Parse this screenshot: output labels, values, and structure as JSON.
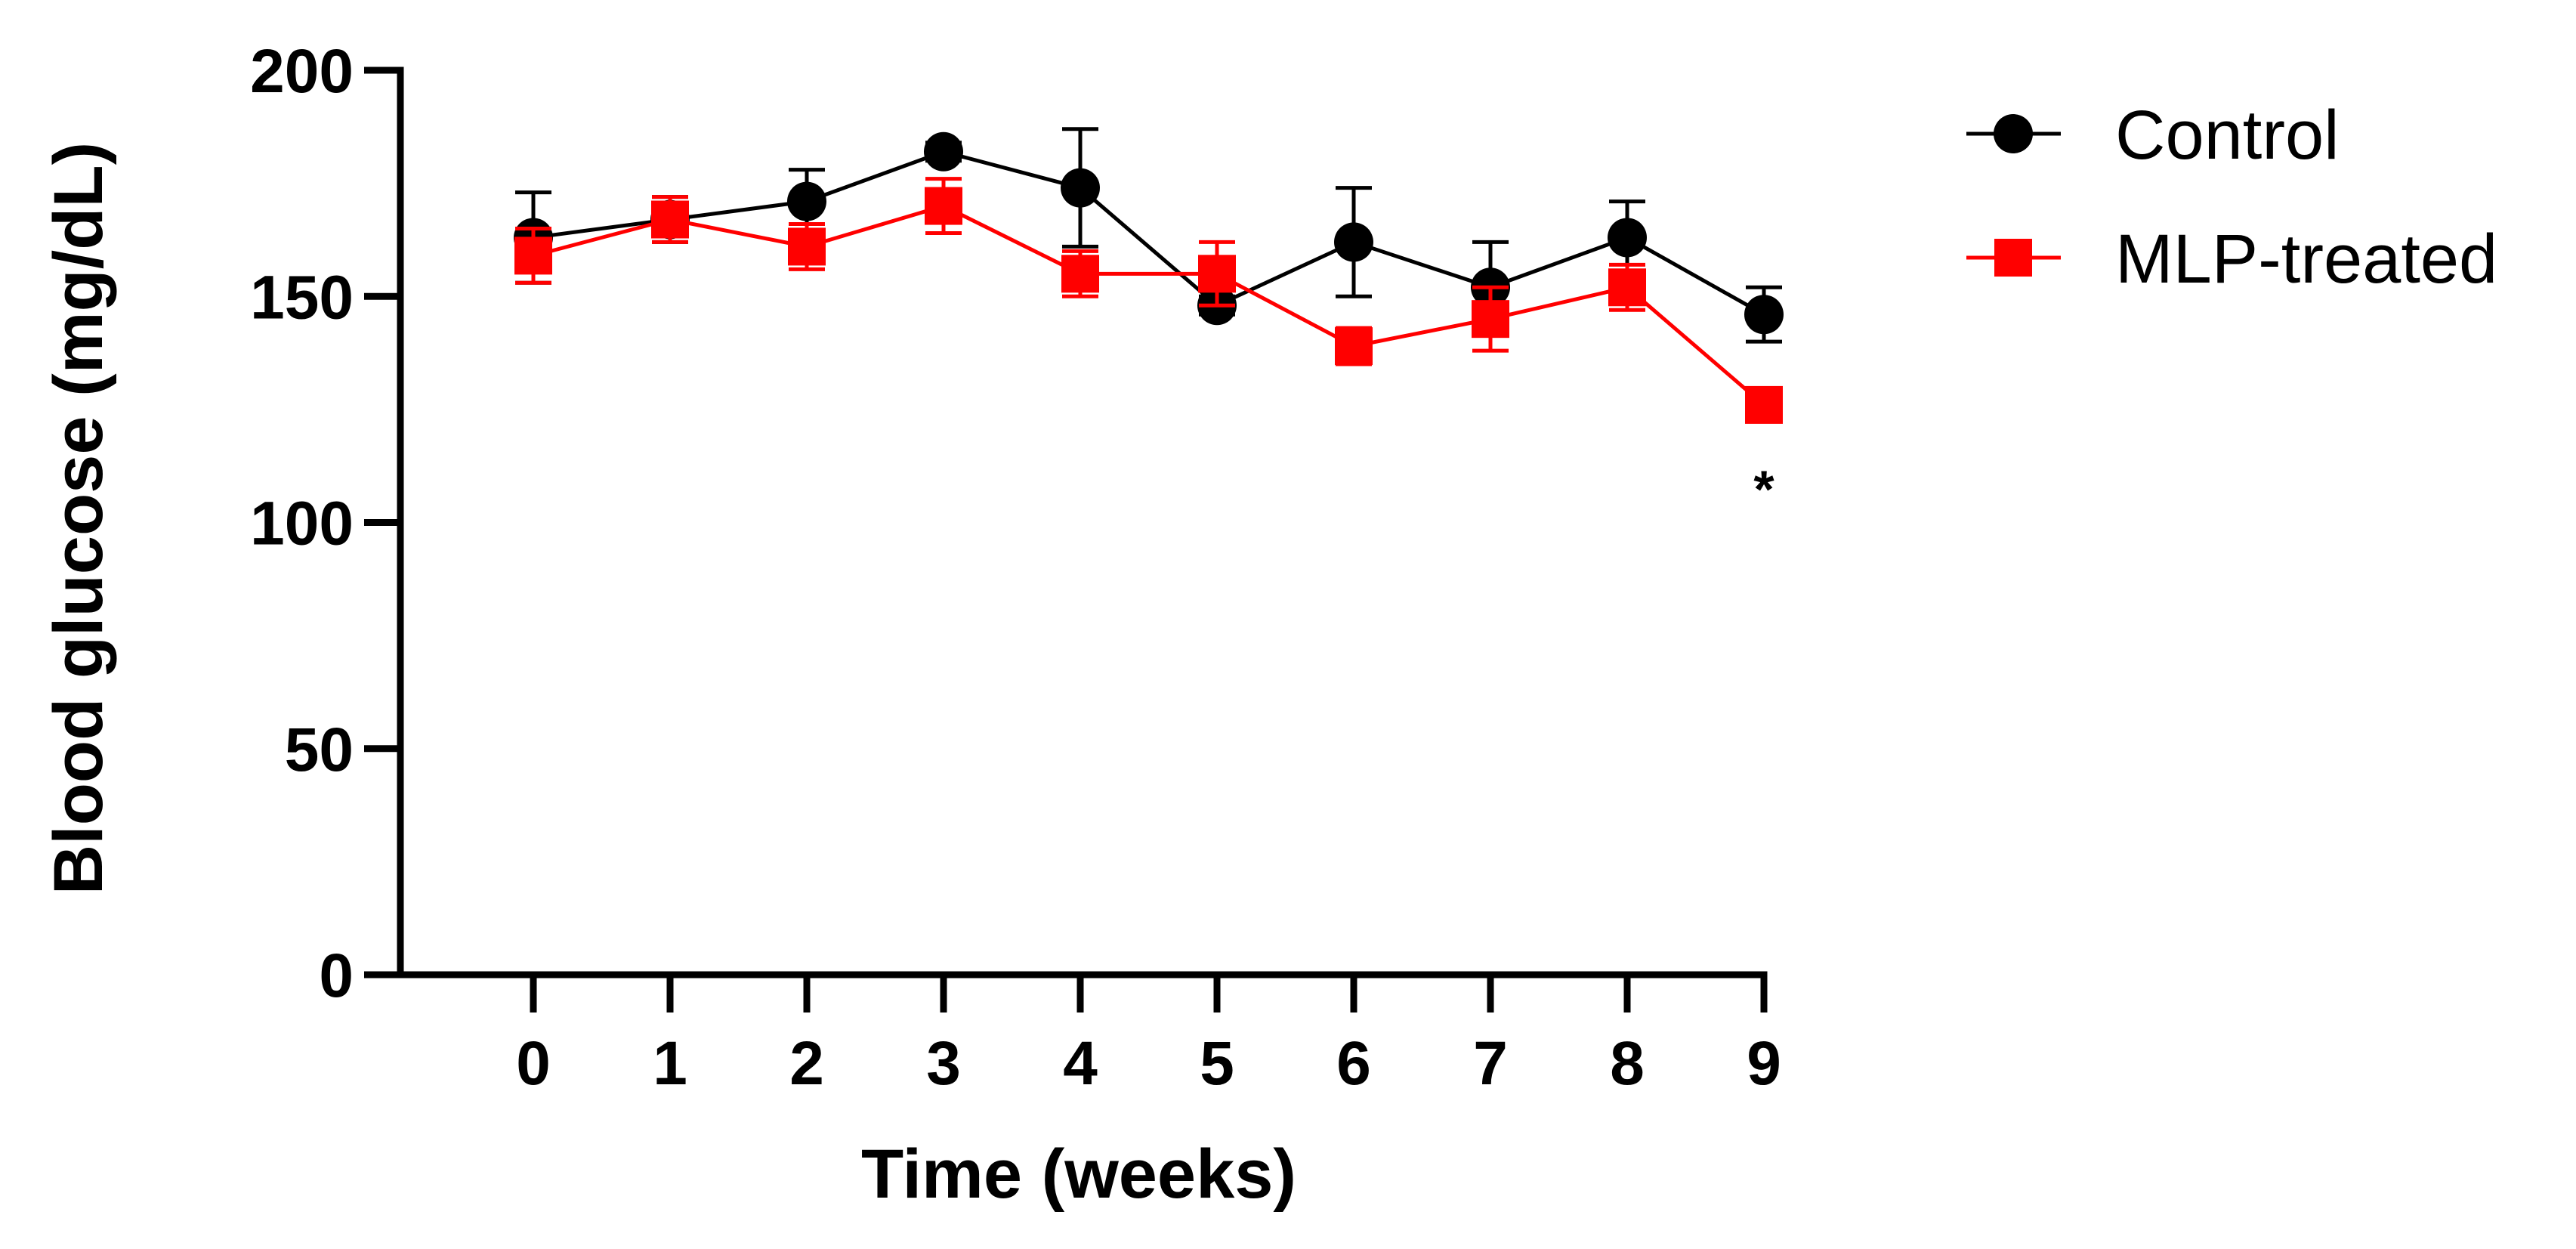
{
  "chart_data": {
    "type": "line",
    "xlabel": "Time (weeks)",
    "ylabel": "Blood glucose (mg/dL)",
    "x": [
      0,
      1,
      2,
      3,
      4,
      5,
      6,
      7,
      8,
      9
    ],
    "x_tick_labels": [
      "0",
      "1",
      "2",
      "3",
      "4",
      "5",
      "6",
      "7",
      "8",
      "9"
    ],
    "ylim": [
      0,
      200
    ],
    "y_ticks": [
      0,
      50,
      100,
      150,
      200
    ],
    "y_tick_labels": [
      "0",
      "50",
      "100",
      "150",
      "200"
    ],
    "grid": false,
    "legend_position": "top-right",
    "series": [
      {
        "name": "Control",
        "color": "#000000",
        "marker": "circle",
        "values": [
          163,
          167,
          171,
          182,
          174,
          148,
          162,
          152,
          163,
          146
        ],
        "errors": [
          10,
          5,
          7,
          2,
          13,
          2,
          12,
          10,
          8,
          6
        ]
      },
      {
        "name": "MLP-treated",
        "color": "#ff0000",
        "marker": "square",
        "values": [
          159,
          167,
          161,
          170,
          155,
          155,
          139,
          145,
          152,
          126
        ],
        "errors": [
          6,
          5,
          5,
          6,
          5,
          7,
          4,
          7,
          5,
          2
        ]
      }
    ],
    "annotations": [
      {
        "text": "*",
        "x": 9,
        "y": 110
      }
    ]
  }
}
